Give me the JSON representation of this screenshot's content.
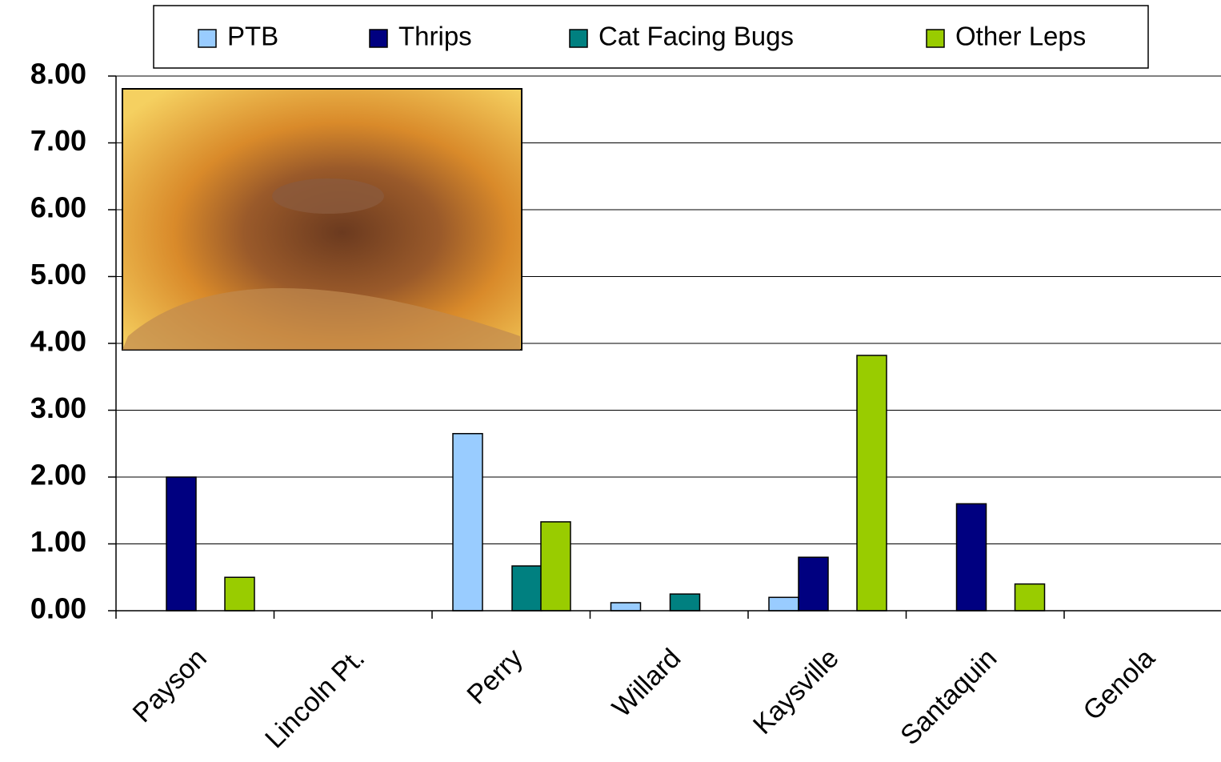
{
  "chart_data": {
    "type": "bar",
    "categories": [
      "Payson",
      "Lincoln Pt.",
      "Perry",
      "Willard",
      "Kaysville",
      "Santaquin",
      "Genola"
    ],
    "series": [
      {
        "name": "PTB",
        "color": "#99ccff",
        "values": [
          0,
          0,
          2.65,
          0.12,
          0.2,
          0,
          0
        ]
      },
      {
        "name": "Thrips",
        "color": "#000080",
        "values": [
          2.0,
          0,
          0,
          0,
          0.8,
          1.6,
          0
        ]
      },
      {
        "name": "Cat Facing Bugs",
        "color": "#008080",
        "values": [
          0,
          0,
          0.67,
          0.25,
          0,
          0,
          0
        ]
      },
      {
        "name": "Other Leps",
        "color": "#99cc00",
        "values": [
          0.5,
          0,
          1.33,
          0,
          3.82,
          0.4,
          0
        ]
      }
    ],
    "ylim": [
      0,
      8
    ],
    "yticks": [
      {
        "value": 0,
        "label": "0.00"
      },
      {
        "value": 1,
        "label": "1.00"
      },
      {
        "value": 2,
        "label": "2.00"
      },
      {
        "value": 3,
        "label": "3.00"
      },
      {
        "value": 4,
        "label": "4.00"
      },
      {
        "value": 5,
        "label": "5.00"
      },
      {
        "value": 6,
        "label": "6.00"
      },
      {
        "value": 7,
        "label": "7.00"
      },
      {
        "value": 8,
        "label": "8.00"
      }
    ],
    "grid": true,
    "legend": "top"
  }
}
